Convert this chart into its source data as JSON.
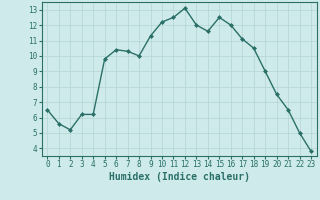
{
  "x": [
    0,
    1,
    2,
    3,
    4,
    5,
    6,
    7,
    8,
    9,
    10,
    11,
    12,
    13,
    14,
    15,
    16,
    17,
    18,
    19,
    20,
    21,
    22,
    23
  ],
  "y": [
    6.5,
    5.6,
    5.2,
    6.2,
    6.2,
    9.8,
    10.4,
    10.3,
    10.0,
    11.3,
    12.2,
    12.5,
    13.1,
    12.0,
    11.6,
    12.5,
    12.0,
    11.1,
    10.5,
    9.0,
    7.5,
    6.5,
    5.0,
    3.8
  ],
  "line_color": "#2a7068",
  "marker": "D",
  "marker_size": 2.0,
  "bg_color": "#ceeaea",
  "grid_color": "#b8d8d8",
  "xlabel": "Humidex (Indice chaleur)",
  "ylim": [
    3.5,
    13.5
  ],
  "xlim": [
    -0.5,
    23.5
  ],
  "yticks": [
    4,
    5,
    6,
    7,
    8,
    9,
    10,
    11,
    12,
    13
  ],
  "xticks": [
    0,
    1,
    2,
    3,
    4,
    5,
    6,
    7,
    8,
    9,
    10,
    11,
    12,
    13,
    14,
    15,
    16,
    17,
    18,
    19,
    20,
    21,
    22,
    23
  ],
  "tick_fontsize": 5.5,
  "label_fontsize": 7.0,
  "line_width": 1.0
}
